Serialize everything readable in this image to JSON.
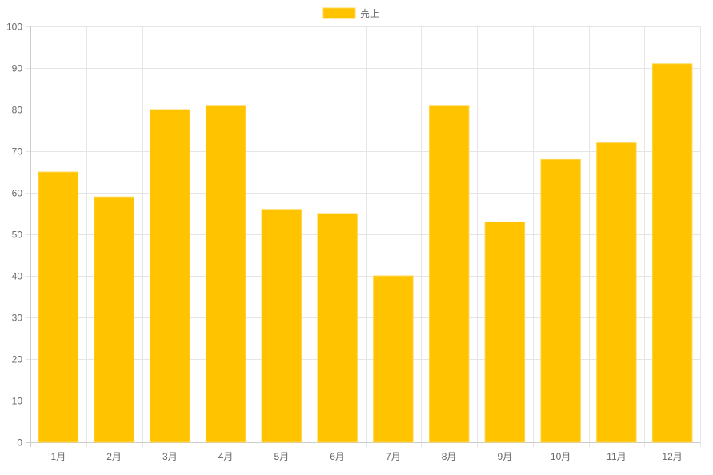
{
  "chart_data": {
    "type": "bar",
    "categories": [
      "1月",
      "2月",
      "3月",
      "4月",
      "5月",
      "6月",
      "7月",
      "8月",
      "9月",
      "10月",
      "11月",
      "12月"
    ],
    "series": [
      {
        "name": "売上",
        "values": [
          65,
          59,
          80,
          81,
          56,
          55,
          40,
          81,
          53,
          68,
          72,
          91
        ]
      }
    ],
    "ylim": [
      0,
      100
    ],
    "yticks": [
      0,
      10,
      20,
      30,
      40,
      50,
      60,
      70,
      80,
      90,
      100
    ],
    "grid": true,
    "legend_position": "top",
    "bar_color": "#FFC300",
    "bar_border_color": "#FFD54F"
  }
}
